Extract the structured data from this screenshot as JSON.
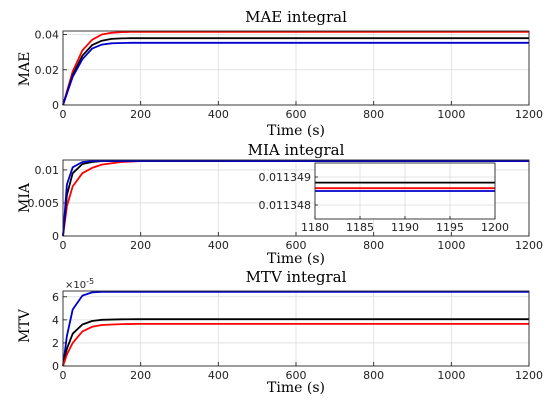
{
  "chart_data": [
    {
      "type": "line",
      "title": "MAE integral",
      "xlabel": "Time (s)",
      "ylabel": "MAE",
      "xlim": [
        0,
        1200
      ],
      "ylim": [
        0,
        0.042
      ],
      "xticks": [
        0,
        200,
        400,
        600,
        800,
        1000,
        1200
      ],
      "yticks": [
        0,
        0.02,
        0.04
      ],
      "xtick_labels": [
        "0",
        "200",
        "400",
        "600",
        "800",
        "1000",
        "1200"
      ],
      "ytick_labels": [
        "0",
        "0.02",
        "0.04"
      ],
      "grid": true,
      "series": [
        {
          "color": "#ff0000",
          "x": [
            0,
            25,
            50,
            75,
            100,
            125,
            150,
            175,
            200,
            1200
          ],
          "y": [
            0,
            0.019,
            0.031,
            0.037,
            0.04,
            0.041,
            0.0414,
            0.0415,
            0.0415,
            0.0415
          ]
        },
        {
          "color": "#000000",
          "x": [
            0,
            25,
            50,
            75,
            100,
            125,
            150,
            175,
            200,
            1200
          ],
          "y": [
            0,
            0.017,
            0.028,
            0.034,
            0.0365,
            0.0375,
            0.0378,
            0.0379,
            0.0379,
            0.0379
          ]
        },
        {
          "color": "#0000cc",
          "x": [
            0,
            25,
            50,
            75,
            100,
            125,
            150,
            175,
            200,
            1200
          ],
          "y": [
            0,
            0.016,
            0.026,
            0.032,
            0.0343,
            0.035,
            0.0352,
            0.0353,
            0.0353,
            0.0353
          ]
        }
      ]
    },
    {
      "type": "line",
      "title": "MIA integral",
      "xlabel": "Time (s)",
      "ylabel": "MIA",
      "xlim": [
        0,
        1200
      ],
      "ylim": [
        0,
        0.0115
      ],
      "xticks": [
        0,
        200,
        400,
        600,
        800,
        1000,
        1200
      ],
      "yticks": [
        0,
        0.005,
        0.01
      ],
      "xtick_labels": [
        "0",
        "200",
        "400",
        "600",
        "800",
        "1000",
        "1200"
      ],
      "ytick_labels": [
        "0",
        "0.005",
        "0.01"
      ],
      "grid": true,
      "series": [
        {
          "color": "#ff0000",
          "x": [
            0,
            10,
            25,
            50,
            75,
            100,
            150,
            200,
            1200
          ],
          "y": [
            0,
            0.0045,
            0.0075,
            0.0095,
            0.0103,
            0.0108,
            0.0112,
            0.01134,
            0.01135
          ]
        },
        {
          "color": "#000000",
          "x": [
            0,
            10,
            25,
            50,
            75,
            100,
            150,
            200,
            1200
          ],
          "y": [
            0,
            0.0062,
            0.0095,
            0.0109,
            0.0112,
            0.01133,
            0.01135,
            0.01135,
            0.01135
          ]
        },
        {
          "color": "#0000cc",
          "x": [
            0,
            10,
            25,
            50,
            75,
            100,
            150,
            200,
            1200
          ],
          "y": [
            0,
            0.0078,
            0.0104,
            0.0112,
            0.01133,
            0.01135,
            0.01135,
            0.01135,
            0.01135
          ]
        }
      ],
      "inset": {
        "xlim": [
          1180,
          1200
        ],
        "ylim": [
          0.0113475,
          0.0113495
        ],
        "xticks": [
          1180,
          1185,
          1190,
          1195,
          1200
        ],
        "yticks": [
          0.011348,
          0.011349
        ],
        "xtick_labels": [
          "1180",
          "1185",
          "1190",
          "1195",
          "1200"
        ],
        "ytick_labels": [
          "0.011348",
          "0.011349"
        ],
        "series": [
          {
            "color": "#000000",
            "y": 0.0113488
          },
          {
            "color": "#ff0000",
            "y": 0.0113486
          },
          {
            "color": "#0000cc",
            "y": 0.0113485
          }
        ]
      }
    },
    {
      "type": "line",
      "title": "MTV integral",
      "xlabel": "Time (s)",
      "ylabel": "MTV",
      "xlim": [
        0,
        1200
      ],
      "ylim": [
        0,
        6.5e-05
      ],
      "xticks": [
        0,
        200,
        400,
        600,
        800,
        1000,
        1200
      ],
      "yticks": [
        0,
        2e-05,
        4e-05,
        6e-05
      ],
      "xtick_labels": [
        "0",
        "200",
        "400",
        "600",
        "800",
        "1000",
        "1200"
      ],
      "ytick_labels": [
        "0",
        "2",
        "4",
        "6"
      ],
      "y_exponent_label": "×10",
      "y_exponent_power": "-5",
      "grid": true,
      "series": [
        {
          "color": "#0000cc",
          "x": [
            0,
            10,
            25,
            50,
            75,
            100,
            150,
            1200
          ],
          "y": [
            0,
            2.6e-05,
            4.9e-05,
            6.1e-05,
            6.38e-05,
            6.42e-05,
            6.43e-05,
            6.43e-05
          ]
        },
        {
          "color": "#000000",
          "x": [
            0,
            10,
            25,
            50,
            75,
            100,
            150,
            200,
            1200
          ],
          "y": [
            0,
            1.5e-05,
            2.8e-05,
            3.6e-05,
            3.9e-05,
            4e-05,
            4.05e-05,
            4.06e-05,
            4.06e-05
          ]
        },
        {
          "color": "#ff0000",
          "x": [
            0,
            10,
            25,
            50,
            75,
            100,
            150,
            200,
            1200
          ],
          "y": [
            0,
            1e-05,
            2e-05,
            3e-05,
            3.4e-05,
            3.55e-05,
            3.63e-05,
            3.65e-05,
            3.65e-05
          ]
        }
      ]
    }
  ]
}
